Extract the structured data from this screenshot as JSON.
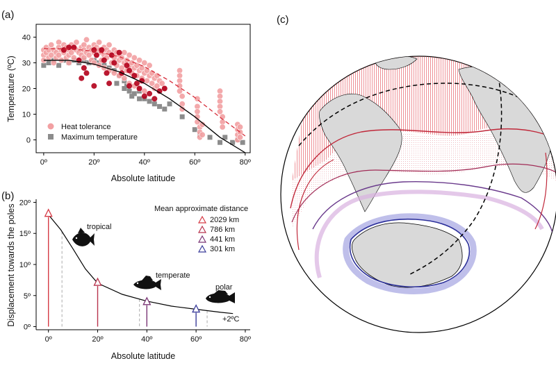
{
  "panels": {
    "a": "(a)",
    "b": "(b)",
    "c": "(c)"
  },
  "chart_data": [
    {
      "type": "scatter",
      "panel": "(a)",
      "xlabel": "Absolute latitude",
      "ylabel": "Temperature (ºC)",
      "xlim": [
        -3,
        82
      ],
      "ylim": [
        -5,
        45
      ],
      "x_ticks": [
        0,
        20,
        40,
        60,
        80
      ],
      "x_tick_labels": [
        "0º",
        "20º",
        "40º",
        "60º",
        "80º"
      ],
      "y_ticks": [
        0,
        10,
        20,
        30,
        40
      ],
      "y_tick_labels": [
        "0",
        "10",
        "20",
        "30",
        "40"
      ],
      "legend": {
        "placement": "bottom-left",
        "entries": [
          "Heat tolerance",
          "Maximum temperature"
        ]
      },
      "colors": {
        "heat_light": "#f2a0a2",
        "heat_dark": "#b3001b",
        "max_temp": "#8c8c8c",
        "fit_heat": "#d62d3a",
        "fit_max": "#000000"
      },
      "series": [
        {
          "name": "Heat tolerance",
          "points": [
            [
              0,
              35
            ],
            [
              0,
              33
            ],
            [
              0,
              31
            ],
            [
              1,
              36
            ],
            [
              1,
              34
            ],
            [
              2,
              35
            ],
            [
              2,
              32
            ],
            [
              3,
              37
            ],
            [
              3,
              33
            ],
            [
              4,
              35
            ],
            [
              4,
              30
            ],
            [
              5,
              34
            ],
            [
              5,
              32
            ],
            [
              6,
              38
            ],
            [
              6,
              36
            ],
            [
              6,
              33
            ],
            [
              7,
              35
            ],
            [
              7,
              31
            ],
            [
              8,
              37
            ],
            [
              8,
              34
            ],
            [
              9,
              36
            ],
            [
              9,
              32
            ],
            [
              10,
              35
            ],
            [
              10,
              33
            ],
            [
              10,
              30
            ],
            [
              11,
              37
            ],
            [
              11,
              34
            ],
            [
              12,
              36
            ],
            [
              12,
              32
            ],
            [
              13,
              38
            ],
            [
              13,
              35
            ],
            [
              14,
              34
            ],
            [
              14,
              31
            ],
            [
              15,
              36
            ],
            [
              15,
              33
            ],
            [
              16,
              37
            ],
            [
              16,
              35
            ],
            [
              16,
              32
            ],
            [
              17,
              39
            ],
            [
              17,
              34
            ],
            [
              18,
              36
            ],
            [
              18,
              33
            ],
            [
              19,
              35
            ],
            [
              19,
              31
            ],
            [
              20,
              37
            ],
            [
              20,
              34
            ],
            [
              20,
              30
            ],
            [
              21,
              36
            ],
            [
              21,
              33
            ],
            [
              22,
              38
            ],
            [
              22,
              35
            ],
            [
              22,
              29
            ],
            [
              23,
              34
            ],
            [
              23,
              31
            ],
            [
              24,
              36
            ],
            [
              24,
              33
            ],
            [
              24,
              28
            ],
            [
              25,
              35
            ],
            [
              25,
              32
            ],
            [
              26,
              37
            ],
            [
              26,
              34
            ],
            [
              26,
              27
            ],
            [
              27,
              33
            ],
            [
              27,
              30
            ],
            [
              28,
              35
            ],
            [
              28,
              32
            ],
            [
              28,
              26
            ],
            [
              29,
              34
            ],
            [
              29,
              29
            ],
            [
              30,
              33
            ],
            [
              30,
              31
            ],
            [
              30,
              25
            ],
            [
              31,
              32
            ],
            [
              31,
              28
            ],
            [
              32,
              34
            ],
            [
              32,
              30
            ],
            [
              32,
              24
            ],
            [
              33,
              31
            ],
            [
              33,
              27
            ],
            [
              34,
              33
            ],
            [
              34,
              29
            ],
            [
              34,
              22
            ],
            [
              35,
              30
            ],
            [
              35,
              26
            ],
            [
              36,
              32
            ],
            [
              36,
              28
            ],
            [
              36,
              21
            ],
            [
              37,
              29
            ],
            [
              37,
              25
            ],
            [
              38,
              31
            ],
            [
              38,
              27
            ],
            [
              38,
              20
            ],
            [
              39,
              28
            ],
            [
              39,
              24
            ],
            [
              40,
              30
            ],
            [
              40,
              26
            ],
            [
              40,
              19
            ],
            [
              41,
              27
            ],
            [
              41,
              23
            ],
            [
              42,
              29
            ],
            [
              42,
              25
            ],
            [
              43,
              26
            ],
            [
              43,
              22
            ],
            [
              44,
              24
            ],
            [
              44,
              20
            ],
            [
              45,
              25
            ],
            [
              45,
              21
            ],
            [
              46,
              23
            ],
            [
              47,
              22
            ],
            [
              48,
              20
            ],
            [
              54,
              27
            ],
            [
              54,
              25
            ],
            [
              54,
              23
            ],
            [
              54,
              21
            ],
            [
              54,
              19
            ],
            [
              55,
              17
            ],
            [
              55,
              14
            ],
            [
              55,
              12
            ],
            [
              61,
              16
            ],
            [
              61,
              13
            ],
            [
              61,
              11
            ],
            [
              61,
              9
            ],
            [
              61,
              7
            ],
            [
              62,
              5
            ],
            [
              62,
              3
            ],
            [
              62,
              1
            ],
            [
              63,
              6
            ],
            [
              63,
              2
            ],
            [
              70,
              19
            ],
            [
              70,
              17
            ],
            [
              70,
              15
            ],
            [
              70,
              13
            ],
            [
              70,
              11
            ],
            [
              71,
              9
            ],
            [
              71,
              7
            ],
            [
              71,
              5
            ],
            [
              77,
              6
            ],
            [
              77,
              4
            ],
            [
              77,
              2
            ],
            [
              77,
              0
            ],
            [
              78,
              5
            ],
            [
              78,
              3
            ],
            [
              78,
              1
            ]
          ]
        },
        {
          "name": "Heat tolerance (dark)",
          "points": [
            [
              8,
              35
            ],
            [
              10,
              36
            ],
            [
              12,
              36
            ],
            [
              14,
              31
            ],
            [
              16,
              28
            ],
            [
              17,
              26
            ],
            [
              20,
              35
            ],
            [
              21,
              33
            ],
            [
              23,
              35
            ],
            [
              24,
              31
            ],
            [
              25,
              26
            ],
            [
              26,
              22
            ],
            [
              27,
              33
            ],
            [
              28,
              30
            ],
            [
              30,
              34
            ],
            [
              31,
              26
            ],
            [
              33,
              29
            ],
            [
              34,
              21
            ],
            [
              36,
              25
            ],
            [
              37,
              22
            ],
            [
              38,
              20
            ],
            [
              40,
              17
            ],
            [
              42,
              18
            ],
            [
              44,
              16
            ],
            [
              46,
              19
            ],
            [
              48,
              20
            ],
            [
              34,
              27
            ],
            [
              39,
              23
            ],
            [
              15,
              24
            ],
            [
              20,
              21
            ]
          ]
        },
        {
          "name": "Maximum temperature",
          "points": [
            [
              0,
              29
            ],
            [
              2,
              30
            ],
            [
              4,
              31
            ],
            [
              6,
              29
            ],
            [
              8,
              31
            ],
            [
              10,
              30
            ],
            [
              12,
              31
            ],
            [
              14,
              30
            ],
            [
              16,
              31
            ],
            [
              18,
              30
            ],
            [
              20,
              31
            ],
            [
              22,
              30
            ],
            [
              24,
              29
            ],
            [
              26,
              28
            ],
            [
              28,
              27
            ],
            [
              30,
              25
            ],
            [
              32,
              23
            ],
            [
              33,
              21
            ],
            [
              34,
              19
            ],
            [
              35,
              17
            ],
            [
              36,
              18
            ],
            [
              38,
              16
            ],
            [
              40,
              16
            ],
            [
              42,
              15
            ],
            [
              44,
              14
            ],
            [
              46,
              13
            ],
            [
              48,
              12
            ],
            [
              50,
              14
            ],
            [
              55,
              9
            ],
            [
              60,
              4
            ],
            [
              62,
              2
            ],
            [
              66,
              1
            ],
            [
              70,
              -1
            ],
            [
              72,
              1
            ],
            [
              75,
              -1
            ],
            [
              77,
              0
            ],
            [
              79,
              -1
            ],
            [
              32,
              20
            ],
            [
              29,
              22
            ],
            [
              38,
              19
            ]
          ]
        }
      ],
      "fits": [
        {
          "name": "Heat tolerance",
          "style": "dashed",
          "x": [
            0,
            10,
            20,
            30,
            40,
            50,
            60,
            70,
            80
          ],
          "y": [
            35.5,
            35.4,
            34.6,
            32.4,
            28.5,
            23,
            16.5,
            8.8,
            1.5
          ]
        },
        {
          "name": "Maximum temperature",
          "style": "solid",
          "x": [
            0,
            10,
            20,
            30,
            40,
            50,
            60,
            70,
            80
          ],
          "y": [
            31,
            31,
            29.5,
            26.5,
            22,
            16,
            9,
            1,
            -5
          ]
        }
      ]
    },
    {
      "type": "line",
      "panel": "(b)",
      "xlabel": "Absolute latitude",
      "ylabel": "Displacement towards the poles",
      "xlim": [
        -5,
        82
      ],
      "ylim": [
        -0.5,
        20.5
      ],
      "x_ticks": [
        0,
        20,
        40,
        60,
        80
      ],
      "x_tick_labels": [
        "0º",
        "20º",
        "40º",
        "60º",
        "80º"
      ],
      "y_ticks": [
        0,
        5,
        10,
        15,
        20
      ],
      "y_tick_labels": [
        "0º",
        "5º",
        "10º",
        "15º",
        "20º"
      ],
      "curve": {
        "x": [
          0,
          5,
          10,
          15,
          20,
          30,
          40,
          50,
          60,
          70,
          75
        ],
        "y": [
          18,
          15.6,
          12.5,
          9.3,
          7.0,
          5.2,
          4.1,
          3.3,
          2.8,
          2.3,
          2.1
        ]
      },
      "curve_label": "+2ºC",
      "legend_title": "Mean approximate distance",
      "markers": [
        {
          "lat": 0,
          "disp": 18.3,
          "label": "2029 km",
          "color": "#d63a45"
        },
        {
          "lat": 20,
          "disp": 7.2,
          "label": "786 km",
          "color": "#b8334d"
        },
        {
          "lat": 40,
          "disp": 4.1,
          "label": "441 km",
          "color": "#7a3575"
        },
        {
          "lat": 60,
          "disp": 2.9,
          "label": "301 km",
          "color": "#3a3c9a"
        }
      ],
      "reference_lines_lat": [
        5.5,
        37,
        64.5
      ],
      "annotations": [
        "tropical",
        "temperate",
        "polar"
      ]
    }
  ],
  "map": {
    "panel": "(c)",
    "land_color": "#d9d9d9",
    "band_colors": {
      "tropical": "#e0303a",
      "temperate": "#b0304a",
      "subpolar": "#7a3a8c",
      "polar": "#2b2f9a"
    }
  }
}
